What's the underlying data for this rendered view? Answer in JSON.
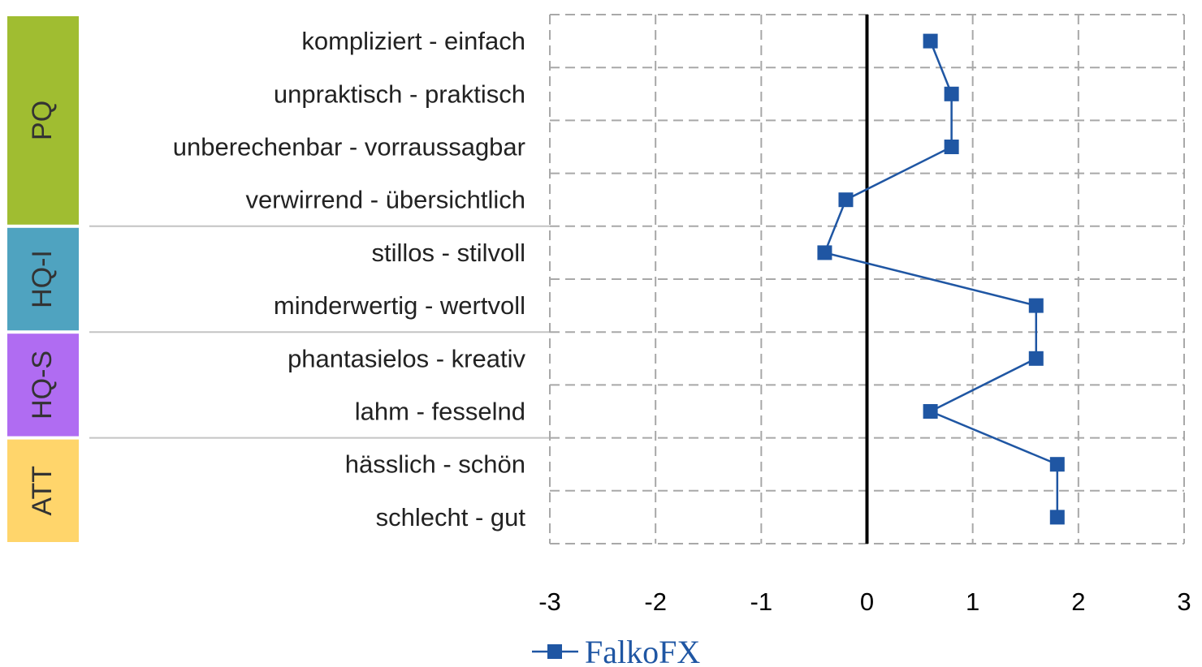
{
  "chart_data": {
    "type": "line",
    "orientation": "horizontal-profile",
    "categories": [
      "kompliziert - einfach",
      "unpraktisch - praktisch",
      "unberechenbar - vorraussagbar",
      "verwirrend - übersichtlich",
      "stillos - stilvoll",
      "minderwertig - wertvoll",
      "phantasielos - kreativ",
      "lahm - fesselnd",
      "hässlich - schön",
      "schlecht - gut"
    ],
    "series": [
      {
        "name": "FalkoFX",
        "color": "#1f56a3",
        "values": [
          0.6,
          0.8,
          0.8,
          -0.2,
          -0.4,
          1.6,
          1.6,
          0.6,
          1.8,
          1.8
        ]
      }
    ],
    "xlim": [
      -3,
      3
    ],
    "xticks": [
      "-3",
      "-2",
      "-1",
      "0",
      "1",
      "2",
      "3"
    ],
    "grid": true,
    "legend": "bottom",
    "groups": [
      {
        "label": "PQ",
        "start": 0,
        "count": 4,
        "color": "#a0bd31"
      },
      {
        "label": "HQ-I",
        "start": 4,
        "count": 2,
        "color": "#4fa3c0"
      },
      {
        "label": "HQ-S",
        "start": 6,
        "count": 2,
        "color": "#b06cf2"
      },
      {
        "label": "ATT",
        "start": 8,
        "count": 2,
        "color": "#ffd56b"
      }
    ]
  }
}
